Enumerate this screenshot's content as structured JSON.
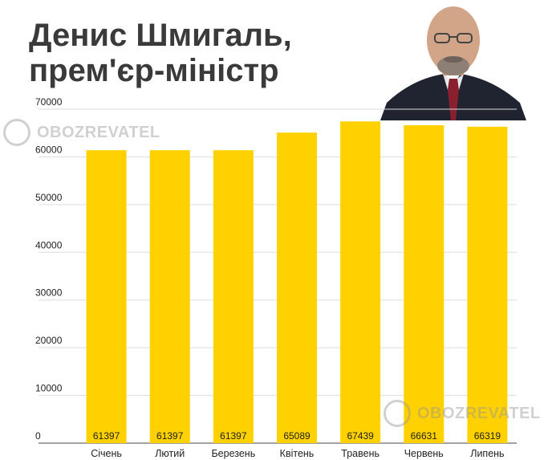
{
  "title": "Денис Шмигаль, прем'єр-міністр",
  "watermark": {
    "text": "OBOZREVATEL",
    "icon": "obozrevatel-logo-icon"
  },
  "photo": {
    "icon": "portrait-photo"
  },
  "colors": {
    "bar": "#FFD100",
    "grid": "#dddddd",
    "title": "#3a3a3a",
    "axis": "#444444"
  },
  "chart_data": {
    "type": "bar",
    "categories": [
      "Січень",
      "Лютий",
      "Березень",
      "Квітень",
      "Травень",
      "Червень",
      "Липень"
    ],
    "values": [
      61397,
      61397,
      61397,
      65089,
      67439,
      66631,
      66319
    ],
    "data_labels": [
      "61397",
      "61397",
      "61397",
      "65089",
      "67439",
      "66631",
      "66319"
    ],
    "yticks": [
      0,
      10000,
      20000,
      30000,
      40000,
      50000,
      60000,
      70000
    ],
    "ylim": [
      0,
      70000
    ],
    "grid": true,
    "legend": "none",
    "xlabel": "",
    "ylabel": ""
  }
}
